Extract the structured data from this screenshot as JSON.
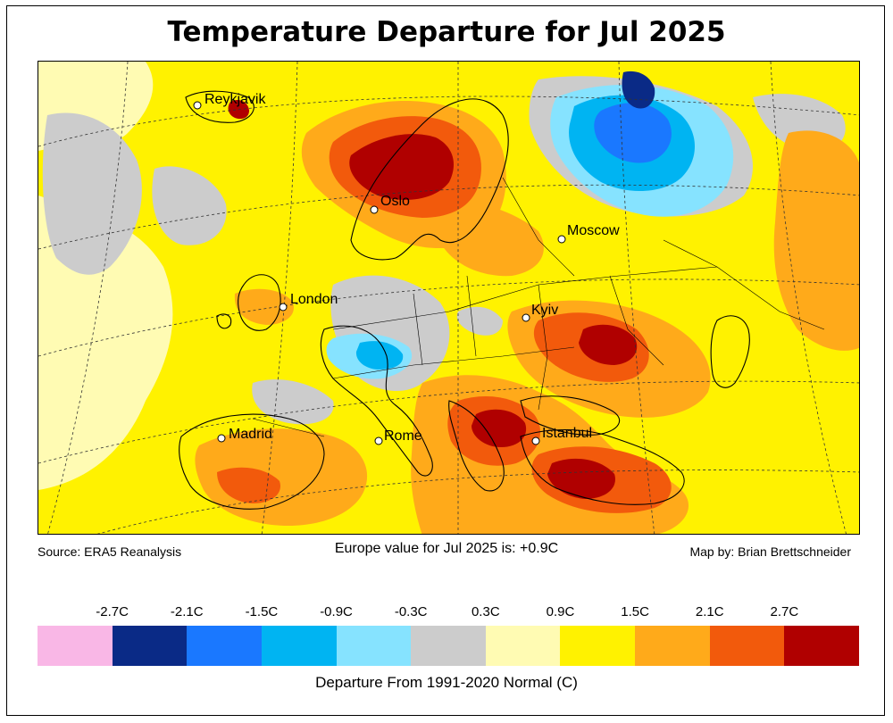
{
  "title": "Temperature Departure for Jul 2025",
  "source": "Source: ERA5 Reanalysis",
  "summary": "Europe value for Jul 2025 is: +0.9C",
  "credit": "Map by: Brian Brettschneider",
  "legend": {
    "tick_labels": [
      "-2.7C",
      "-2.1C",
      "-1.5C",
      "-0.9C",
      "-0.3C",
      "0.3C",
      "0.9C",
      "1.5C",
      "2.1C",
      "2.7C"
    ],
    "colors": [
      "#f9b7e6",
      "#0a2a86",
      "#1a78ff",
      "#00b4f2",
      "#86e3ff",
      "#cccccc",
      "#fffbb3",
      "#fff200",
      "#ffaa1a",
      "#f25a0c",
      "#b00000"
    ],
    "label": "Departure From 1991-2020 Normal (C)"
  },
  "cities": [
    {
      "name": "Reykjavik"
    },
    {
      "name": "Oslo"
    },
    {
      "name": "Moscow"
    },
    {
      "name": "London"
    },
    {
      "name": "Kyiv"
    },
    {
      "name": "Madrid"
    },
    {
      "name": "Rome"
    },
    {
      "name": "Istanbul"
    }
  ]
}
